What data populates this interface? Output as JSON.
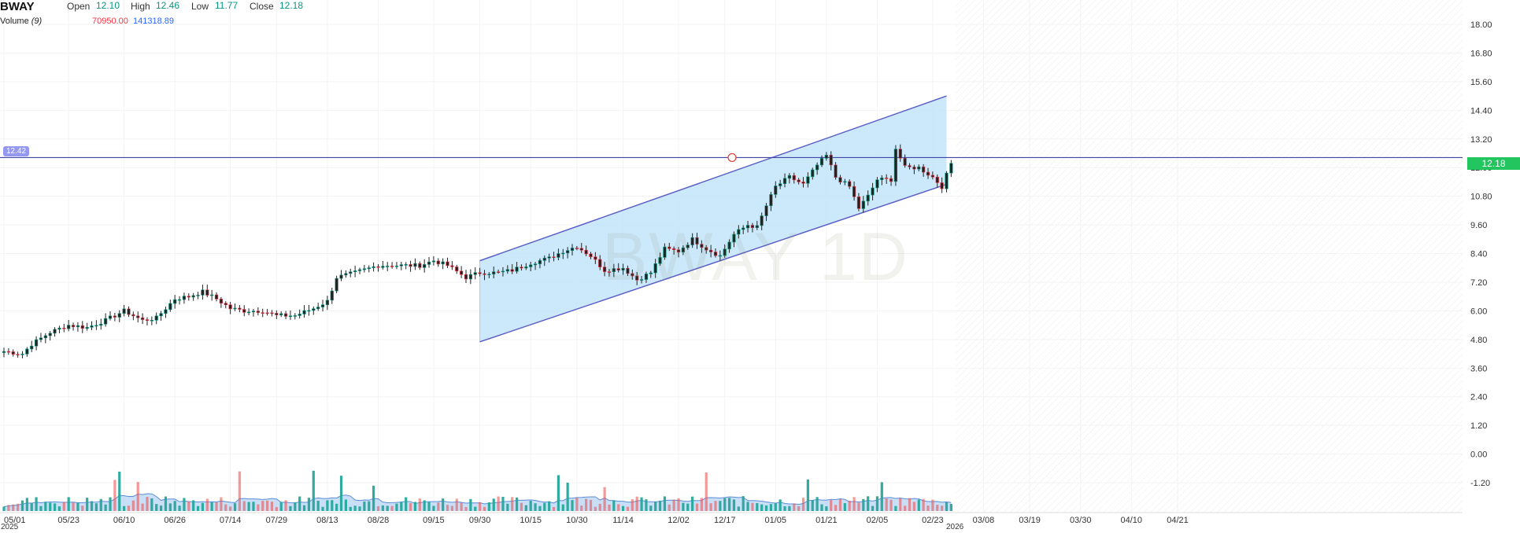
{
  "header": {
    "symbol": "BWAY",
    "open_label": "Open",
    "open": "12.10",
    "high_label": "High",
    "high": "12.46",
    "low_label": "Low",
    "low": "11.77",
    "close_label": "Close",
    "close": "12.18",
    "volume_label": "Volume",
    "volume_period": "(9)",
    "volume_a": "70950.00",
    "volume_b": "141318.89"
  },
  "watermark": "BWAY 1D",
  "price_line_badge": "12.42",
  "last_price_badge": "12.18",
  "year_labels": {
    "start": "2025",
    "mid": "2026"
  },
  "colors": {
    "up": "#089981",
    "down": "#f23645",
    "channel_fill": "#bfe3fa",
    "channel_line": "#5b5fc7",
    "hline": "#3f46a8",
    "vol_up": "#26a69a",
    "vol_down": "#ef5350",
    "vol_ma_fill": "#9cc5f0"
  },
  "chart_data": {
    "type": "candlestick",
    "symbol": "BWAY",
    "interval": "1D",
    "y_ticks": [
      "18.00",
      "16.80",
      "15.60",
      "14.40",
      "13.20",
      "12.00",
      "10.80",
      "9.60",
      "8.40",
      "7.20",
      "6.00",
      "4.80",
      "3.60",
      "2.40",
      "1.20",
      "0.00",
      "-1.20"
    ],
    "ylim": [
      -1.8,
      18.6
    ],
    "x_ticks": [
      "05/01",
      "05/23",
      "06/10",
      "06/26",
      "07/14",
      "07/29",
      "08/13",
      "08/28",
      "09/15",
      "09/30",
      "10/15",
      "10/30",
      "11/14",
      "12/02",
      "12/17",
      "01/05",
      "01/21",
      "02/05",
      "02/23",
      "03/08",
      "03/19",
      "03/30",
      "04/10",
      "04/21"
    ],
    "x_tick_index": [
      0,
      14,
      26,
      37,
      49,
      59,
      70,
      81,
      93,
      103,
      114,
      124,
      134,
      146,
      156,
      167,
      178,
      189,
      201,
      212,
      222,
      233,
      244,
      254
    ],
    "close_anchors": [
      [
        0,
        4.3
      ],
      [
        4,
        4.2
      ],
      [
        6,
        4.6
      ],
      [
        10,
        5.1
      ],
      [
        14,
        5.4
      ],
      [
        18,
        5.3
      ],
      [
        22,
        5.6
      ],
      [
        26,
        6.0
      ],
      [
        30,
        5.6
      ],
      [
        33,
        5.7
      ],
      [
        37,
        6.5
      ],
      [
        40,
        6.6
      ],
      [
        43,
        6.8
      ],
      [
        46,
        6.5
      ],
      [
        49,
        6.1
      ],
      [
        52,
        6.0
      ],
      [
        56,
        6.0
      ],
      [
        59,
        5.8
      ],
      [
        63,
        5.8
      ],
      [
        67,
        6.1
      ],
      [
        70,
        6.4
      ],
      [
        72,
        7.4
      ],
      [
        76,
        7.6
      ],
      [
        81,
        7.9
      ],
      [
        86,
        7.9
      ],
      [
        90,
        7.9
      ],
      [
        93,
        8.1
      ],
      [
        96,
        7.9
      ],
      [
        100,
        7.4
      ],
      [
        103,
        7.6
      ],
      [
        107,
        7.6
      ],
      [
        110,
        7.7
      ],
      [
        114,
        8.0
      ],
      [
        118,
        8.2
      ],
      [
        121,
        8.5
      ],
      [
        124,
        8.7
      ],
      [
        127,
        8.3
      ],
      [
        130,
        7.7
      ],
      [
        134,
        7.8
      ],
      [
        137,
        7.3
      ],
      [
        140,
        7.6
      ],
      [
        143,
        8.6
      ],
      [
        146,
        8.5
      ],
      [
        149,
        9.0
      ],
      [
        152,
        8.6
      ],
      [
        155,
        8.3
      ],
      [
        158,
        9.2
      ],
      [
        161,
        9.6
      ],
      [
        163,
        9.5
      ],
      [
        165,
        10.4
      ],
      [
        167,
        11.2
      ],
      [
        170,
        11.6
      ],
      [
        173,
        11.3
      ],
      [
        176,
        12.1
      ],
      [
        178,
        12.5
      ],
      [
        180,
        11.6
      ],
      [
        183,
        11.2
      ],
      [
        185,
        10.3
      ],
      [
        187,
        10.8
      ],
      [
        189,
        11.5
      ],
      [
        192,
        11.5
      ],
      [
        193,
        12.8
      ],
      [
        195,
        12.0
      ],
      [
        198,
        12.0
      ],
      [
        201,
        11.6
      ],
      [
        203,
        11.2
      ],
      [
        205,
        12.18
      ]
    ],
    "channel": {
      "upper": [
        [
          103,
          8.1
        ],
        [
          204,
          15.0
        ]
      ],
      "lower": [
        [
          103,
          4.7
        ],
        [
          204,
          11.3
        ]
      ]
    },
    "horizontal_line": 12.42,
    "last_close": 12.18,
    "volume": {
      "ma_period": 9,
      "last_value": 70950.0,
      "last_ma": 141318.89
    }
  }
}
